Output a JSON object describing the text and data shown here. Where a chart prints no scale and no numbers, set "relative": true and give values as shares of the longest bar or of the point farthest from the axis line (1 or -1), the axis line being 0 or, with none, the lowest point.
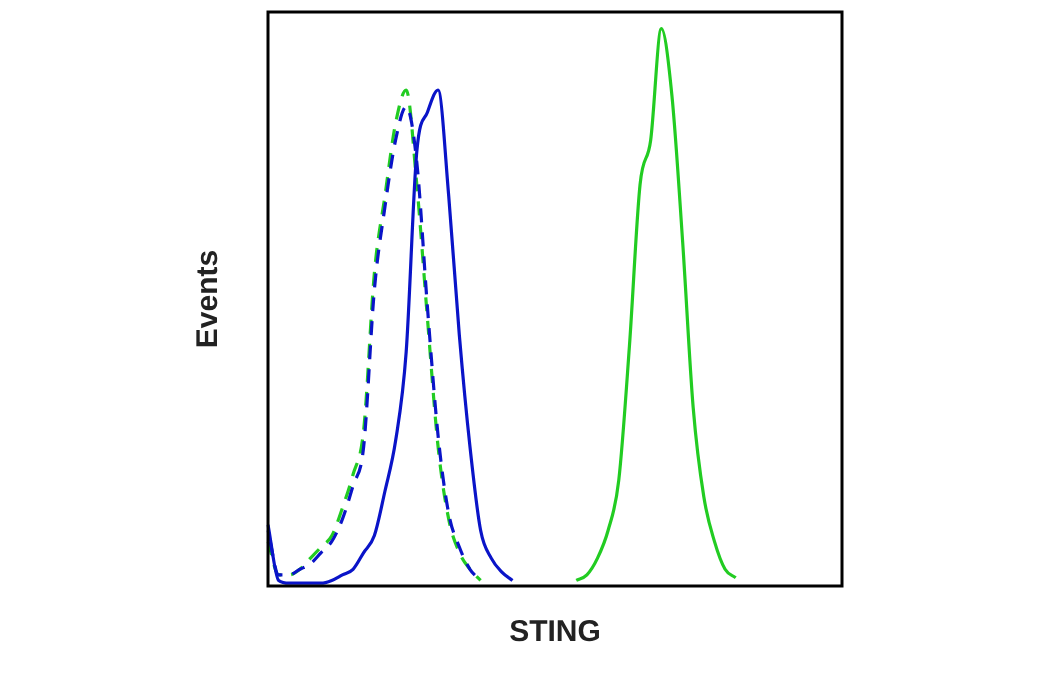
{
  "chart_data": {
    "type": "line",
    "relative": true,
    "xlabel": "STING",
    "ylabel": "Events",
    "legend": false,
    "marker": "none",
    "categories": [
      null,
      null,
      null,
      null,
      null,
      null,
      null,
      null,
      null,
      null,
      null,
      null,
      null,
      null,
      null,
      null,
      null,
      null,
      null,
      null,
      null,
      null,
      null,
      null,
      null,
      null,
      null,
      null,
      null,
      null,
      null,
      null,
      null,
      null,
      null,
      null,
      null,
      null,
      null,
      null,
      null,
      null,
      null,
      null,
      null,
      null,
      null,
      null,
      null,
      null,
      null,
      null,
      null,
      null,
      null
    ],
    "series": [
      {
        "color": "#0a14c8",
        "line_style": "solid",
        "values": [
          0.11,
          0.01,
          0.005,
          0.005,
          0.005,
          0.005,
          0.01,
          0.02,
          0.03,
          0.06,
          0.09,
          0.17,
          0.26,
          0.42,
          0.78,
          0.85,
          0.89,
          0.7,
          0.45,
          0.25,
          0.1,
          0.05,
          0.025,
          0.01,
          null,
          null,
          null,
          null,
          null,
          null,
          null,
          null,
          null,
          null,
          null,
          null,
          null,
          null,
          null,
          null,
          null,
          null,
          null,
          null,
          null,
          null,
          null,
          null,
          null,
          null,
          null,
          null,
          null,
          null,
          null
        ]
      },
      {
        "color": "#0a14c8",
        "line_style": "dashed",
        "values": [
          0.1,
          0.02,
          0.02,
          0.03,
          0.04,
          0.06,
          0.08,
          0.12,
          0.18,
          0.25,
          0.53,
          0.68,
          0.8,
          0.86,
          0.76,
          0.5,
          0.27,
          0.13,
          0.07,
          0.03,
          0.01,
          null,
          null,
          null,
          null,
          null,
          null,
          null,
          null,
          null,
          null,
          null,
          null,
          null,
          null,
          null,
          null,
          null,
          null,
          null,
          null,
          null,
          null,
          null,
          null,
          null,
          null,
          null,
          null,
          null,
          null,
          null,
          null,
          null,
          null
        ]
      },
      {
        "color": "#22cc22",
        "line_style": "dashed",
        "values": [
          0.08,
          0.02,
          0.02,
          0.03,
          0.05,
          0.07,
          0.09,
          0.14,
          0.2,
          0.28,
          0.56,
          0.7,
          0.83,
          0.89,
          0.72,
          0.48,
          0.25,
          0.12,
          0.06,
          0.03,
          0.01,
          null,
          null,
          null,
          null,
          null,
          null,
          null,
          null,
          null,
          null,
          null,
          null,
          null,
          null,
          null,
          null,
          null,
          null,
          null,
          null,
          null,
          null,
          null,
          null,
          null,
          null,
          null,
          null,
          null,
          null,
          null,
          null,
          null,
          null
        ]
      },
      {
        "color": "#22cc22",
        "line_style": "solid",
        "values": [
          null,
          null,
          null,
          null,
          null,
          null,
          null,
          null,
          null,
          null,
          null,
          null,
          null,
          null,
          null,
          null,
          null,
          null,
          null,
          null,
          null,
          null,
          null,
          null,
          null,
          null,
          null,
          null,
          null,
          0.01,
          0.02,
          0.05,
          0.1,
          0.19,
          0.43,
          0.72,
          0.8,
          1,
          0.88,
          0.62,
          0.32,
          0.16,
          0.08,
          0.03,
          0.015,
          null,
          null,
          null,
          null,
          null,
          null,
          null,
          null,
          null,
          null
        ]
      }
    ]
  }
}
